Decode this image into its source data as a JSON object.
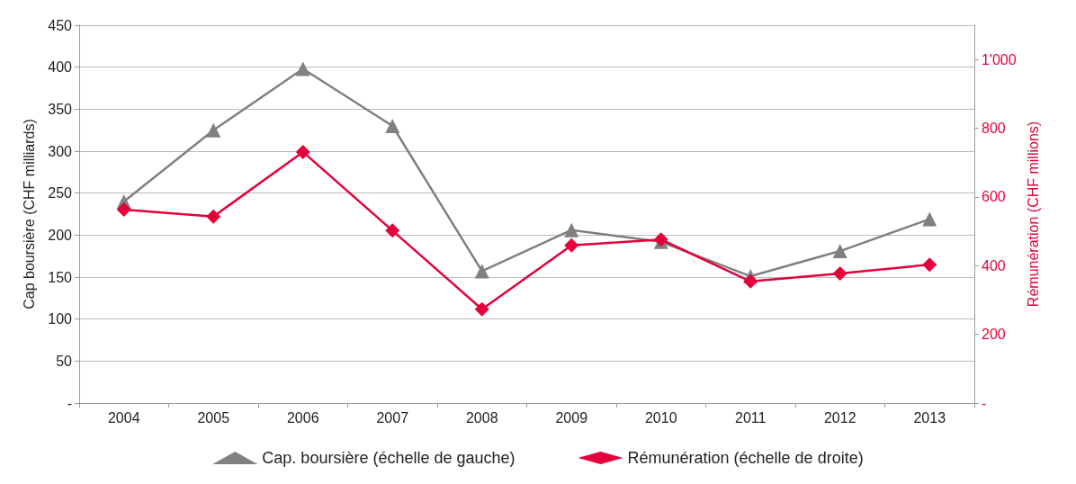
{
  "chart_data": {
    "type": "line",
    "categories": [
      "2004",
      "2005",
      "2006",
      "2007",
      "2008",
      "2009",
      "2010",
      "2011",
      "2012",
      "2013"
    ],
    "ylabel": "Cap boursière (CHF milliards)",
    "y2label": "Rémunération (CHF millions)",
    "ylim": [
      0,
      450
    ],
    "yticks": [
      {
        "value": 0,
        "label": "-"
      },
      50,
      100,
      150,
      200,
      250,
      300,
      350,
      400,
      450
    ],
    "y2lim": [
      0,
      1100
    ],
    "y2ticks": [
      {
        "value": 0,
        "label": "-"
      },
      200,
      400,
      600,
      800,
      {
        "value": 1000,
        "label": "1'000"
      }
    ],
    "grid": "y",
    "legend": "bottom",
    "series": [
      {
        "name": "Cap. boursière (échelle de gauche)",
        "color": "#808080",
        "marker": "triangle",
        "values": [
          240,
          325,
          398,
          330,
          157,
          206,
          192,
          151,
          181,
          219
        ]
      },
      {
        "name": "Rémunération (échelle de droite)",
        "color": "#e4003a",
        "marker": "diamond",
        "axis": "y2",
        "values": [
          563,
          543,
          731,
          502,
          273,
          459,
          476,
          354,
          377,
          403
        ]
      }
    ]
  }
}
